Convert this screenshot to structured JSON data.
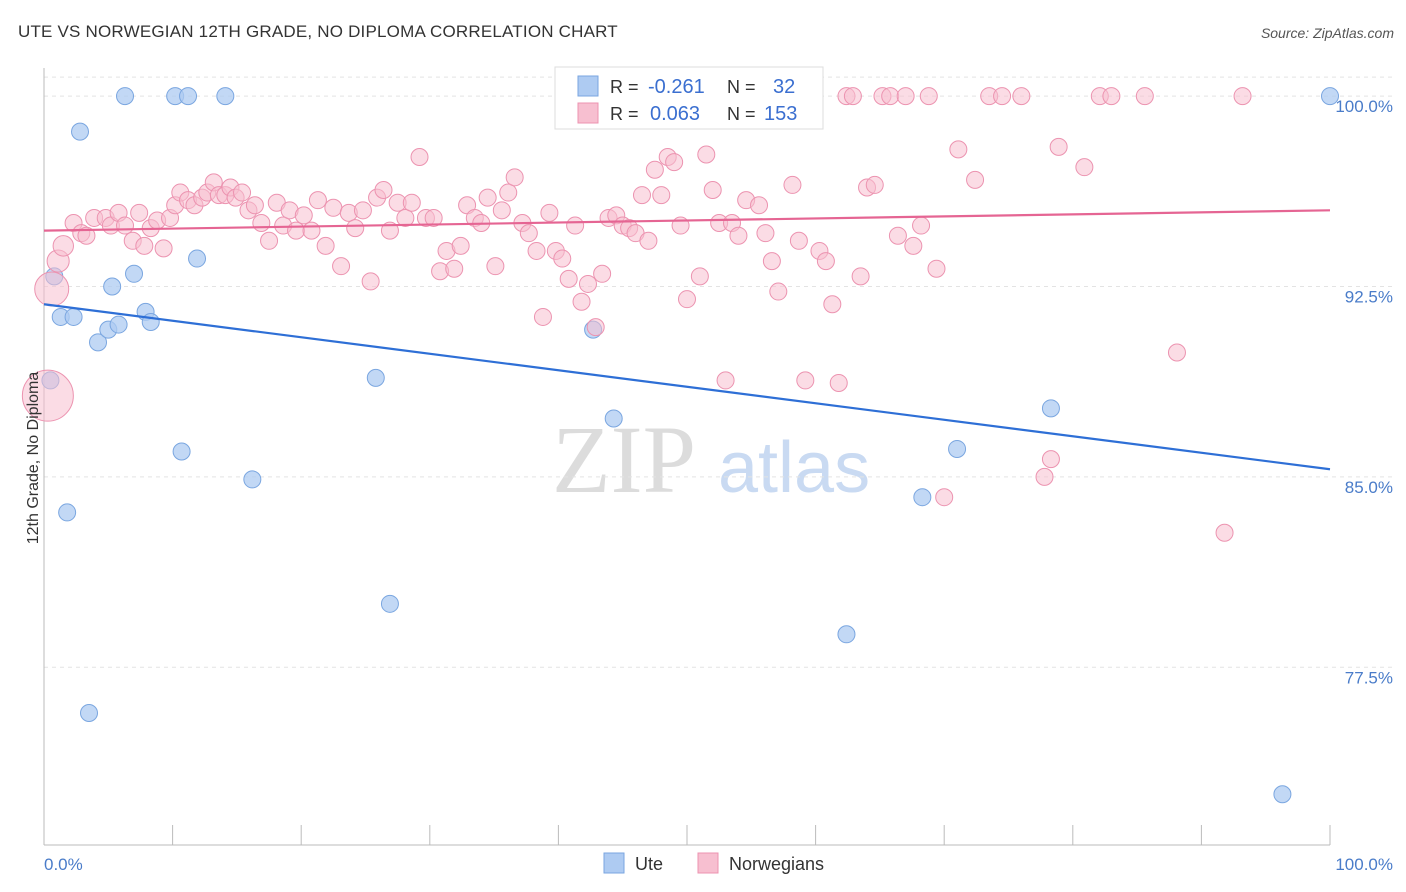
{
  "title": "UTE VS NORWEGIAN 12TH GRADE, NO DIPLOMA CORRELATION CHART",
  "source": "Source: ZipAtlas.com",
  "watermark": {
    "zip": "ZIP",
    "atlas": "atlas"
  },
  "colors": {
    "ute_fill": "#aecbf2",
    "ute_stroke": "#7aa6e0",
    "ute_line": "#2e6fd6",
    "nor_fill": "#f7bfd0",
    "nor_stroke": "#ec93b0",
    "nor_line": "#e56593",
    "tick_label": "#4a7cc9",
    "grid": "#e3e3e3"
  },
  "legend": {
    "ute": {
      "r_label": "R = ",
      "r_value": "-0.261",
      "n_label": "N = ",
      "n_value": "32"
    },
    "nor": {
      "r_label": "R = ",
      "r_value": "0.063",
      "n_label": "N = ",
      "n_value": "153"
    }
  },
  "chart_data": {
    "type": "scatter",
    "title": "UTE VS NORWEGIAN 12TH GRADE, NO DIPLOMA CORRELATION CHART",
    "xlabel": "",
    "ylabel": "12th Grade, No Diploma",
    "xlim": [
      0,
      100
    ],
    "ylim": [
      70.5,
      101.5
    ],
    "x_ticks": [
      "0.0%",
      "100.0%"
    ],
    "y_ticks": [
      {
        "value": 100.0,
        "label": "100.0%"
      },
      {
        "value": 92.5,
        "label": "92.5%"
      },
      {
        "value": 85.0,
        "label": "85.0%"
      },
      {
        "value": 77.5,
        "label": "77.5%"
      }
    ],
    "grid": true,
    "legend_position": "top-center",
    "series": [
      {
        "name": "Ute",
        "trend": {
          "x": [
            0,
            100
          ],
          "y": [
            91.8,
            85.3
          ]
        },
        "points": [
          [
            0.5,
            88.8,
            1
          ],
          [
            0.8,
            92.9,
            1
          ],
          [
            1.3,
            91.3,
            1
          ],
          [
            1.8,
            83.6,
            1
          ],
          [
            2.3,
            91.3,
            1
          ],
          [
            2.8,
            98.6,
            1
          ],
          [
            3.5,
            75.7,
            1
          ],
          [
            4.2,
            90.3,
            1
          ],
          [
            5.0,
            90.8,
            1
          ],
          [
            5.3,
            92.5,
            1
          ],
          [
            5.8,
            91.0,
            1
          ],
          [
            6.3,
            100.0,
            1
          ],
          [
            7.0,
            93.0,
            1
          ],
          [
            7.9,
            91.5,
            1
          ],
          [
            8.3,
            91.1,
            1
          ],
          [
            10.2,
            100.0,
            1
          ],
          [
            10.7,
            86.0,
            1
          ],
          [
            11.2,
            100.0,
            1
          ],
          [
            11.9,
            93.6,
            1
          ],
          [
            14.1,
            100.0,
            1
          ],
          [
            16.2,
            84.9,
            1
          ],
          [
            25.8,
            88.9,
            1
          ],
          [
            26.9,
            80.0,
            1
          ],
          [
            42.7,
            90.8,
            1
          ],
          [
            44.3,
            87.3,
            1
          ],
          [
            47.0,
            100.0,
            1
          ],
          [
            62.4,
            78.8,
            1
          ],
          [
            68.3,
            84.2,
            1
          ],
          [
            71.0,
            86.1,
            1
          ],
          [
            78.3,
            87.7,
            1
          ],
          [
            96.3,
            72.5,
            1
          ],
          [
            100.0,
            100.0,
            1
          ]
        ]
      },
      {
        "name": "Norwegians",
        "trend": {
          "x": [
            0,
            100
          ],
          "y": [
            94.7,
            95.5
          ]
        },
        "points": [
          [
            0.3,
            88.2,
            3
          ],
          [
            0.6,
            92.4,
            2
          ],
          [
            1.1,
            93.5,
            1.3
          ],
          [
            1.5,
            94.1,
            1.2
          ],
          [
            2.3,
            95.0,
            1
          ],
          [
            2.9,
            94.6,
            1
          ],
          [
            3.3,
            94.5,
            1
          ],
          [
            3.9,
            95.2,
            1
          ],
          [
            4.8,
            95.2,
            1
          ],
          [
            5.2,
            94.9,
            1
          ],
          [
            5.8,
            95.4,
            1
          ],
          [
            6.3,
            94.9,
            1
          ],
          [
            6.9,
            94.3,
            1
          ],
          [
            7.4,
            95.4,
            1
          ],
          [
            7.8,
            94.1,
            1
          ],
          [
            8.3,
            94.8,
            1
          ],
          [
            8.8,
            95.1,
            1
          ],
          [
            9.3,
            94.0,
            1
          ],
          [
            9.8,
            95.2,
            1
          ],
          [
            10.2,
            95.7,
            1
          ],
          [
            10.6,
            96.2,
            1
          ],
          [
            11.2,
            95.9,
            1
          ],
          [
            11.7,
            95.7,
            1
          ],
          [
            12.3,
            96.0,
            1
          ],
          [
            12.7,
            96.2,
            1
          ],
          [
            13.2,
            96.6,
            1
          ],
          [
            13.6,
            96.1,
            1
          ],
          [
            14.1,
            96.1,
            1
          ],
          [
            14.5,
            96.4,
            1
          ],
          [
            14.9,
            96.0,
            1
          ],
          [
            15.4,
            96.2,
            1
          ],
          [
            15.9,
            95.5,
            1
          ],
          [
            16.4,
            95.7,
            1
          ],
          [
            16.9,
            95.0,
            1
          ],
          [
            17.5,
            94.3,
            1
          ],
          [
            18.1,
            95.8,
            1
          ],
          [
            18.6,
            94.9,
            1
          ],
          [
            19.1,
            95.5,
            1
          ],
          [
            19.6,
            94.7,
            1
          ],
          [
            20.2,
            95.3,
            1
          ],
          [
            20.8,
            94.7,
            1
          ],
          [
            21.3,
            95.9,
            1
          ],
          [
            21.9,
            94.1,
            1
          ],
          [
            22.5,
            95.6,
            1
          ],
          [
            23.1,
            93.3,
            1
          ],
          [
            23.7,
            95.4,
            1
          ],
          [
            24.2,
            94.8,
            1
          ],
          [
            24.8,
            95.5,
            1
          ],
          [
            25.4,
            92.7,
            1
          ],
          [
            25.9,
            96.0,
            1
          ],
          [
            26.4,
            96.3,
            1
          ],
          [
            26.9,
            94.7,
            1
          ],
          [
            27.5,
            95.8,
            1
          ],
          [
            28.1,
            95.2,
            1
          ],
          [
            28.6,
            95.8,
            1
          ],
          [
            29.2,
            97.6,
            1
          ],
          [
            29.7,
            95.2,
            1
          ],
          [
            30.3,
            95.2,
            1
          ],
          [
            30.8,
            93.1,
            1
          ],
          [
            31.3,
            93.9,
            1
          ],
          [
            31.9,
            93.2,
            1
          ],
          [
            32.4,
            94.1,
            1
          ],
          [
            32.9,
            95.7,
            1
          ],
          [
            33.5,
            95.2,
            1
          ],
          [
            34.0,
            95.0,
            1
          ],
          [
            34.5,
            96.0,
            1
          ],
          [
            35.1,
            93.3,
            1
          ],
          [
            35.6,
            95.5,
            1
          ],
          [
            36.1,
            96.2,
            1
          ],
          [
            36.6,
            96.8,
            1
          ],
          [
            37.2,
            95.0,
            1
          ],
          [
            37.7,
            94.6,
            1
          ],
          [
            38.3,
            93.9,
            1
          ],
          [
            38.8,
            91.3,
            1
          ],
          [
            39.3,
            95.4,
            1
          ],
          [
            39.8,
            93.9,
            1
          ],
          [
            40.3,
            93.6,
            1
          ],
          [
            40.8,
            92.8,
            1
          ],
          [
            41.3,
            94.9,
            1
          ],
          [
            41.8,
            91.9,
            1
          ],
          [
            42.3,
            92.6,
            1
          ],
          [
            42.9,
            90.9,
            1
          ],
          [
            43.4,
            93.0,
            1
          ],
          [
            43.9,
            95.2,
            1
          ],
          [
            44.5,
            95.3,
            1
          ],
          [
            45.0,
            94.9,
            1
          ],
          [
            45.5,
            94.8,
            1
          ],
          [
            46.0,
            94.6,
            1
          ],
          [
            46.5,
            96.1,
            1
          ],
          [
            47.0,
            94.3,
            1
          ],
          [
            47.5,
            97.1,
            1
          ],
          [
            48.0,
            96.1,
            1
          ],
          [
            48.5,
            97.6,
            1
          ],
          [
            49.0,
            97.4,
            1
          ],
          [
            49.5,
            94.9,
            1
          ],
          [
            50.0,
            92.0,
            1
          ],
          [
            50.5,
            100.0,
            1
          ],
          [
            51.0,
            92.9,
            1
          ],
          [
            51.5,
            97.7,
            1
          ],
          [
            52.0,
            96.3,
            1
          ],
          [
            52.5,
            95.0,
            1
          ],
          [
            53.0,
            88.8,
            1
          ],
          [
            53.5,
            95.0,
            1
          ],
          [
            54.0,
            94.5,
            1
          ],
          [
            54.6,
            95.9,
            1
          ],
          [
            55.1,
            100.0,
            1
          ],
          [
            55.6,
            95.7,
            1
          ],
          [
            56.1,
            94.6,
            1
          ],
          [
            56.6,
            93.5,
            1
          ],
          [
            57.1,
            92.3,
            1
          ],
          [
            57.6,
            100.0,
            1
          ],
          [
            58.2,
            96.5,
            1
          ],
          [
            58.7,
            94.3,
            1
          ],
          [
            59.2,
            88.8,
            1
          ],
          [
            59.7,
            100.0,
            1
          ],
          [
            60.3,
            93.9,
            1
          ],
          [
            60.8,
            93.5,
            1
          ],
          [
            61.3,
            91.8,
            1
          ],
          [
            61.8,
            88.7,
            1
          ],
          [
            62.4,
            100.0,
            1
          ],
          [
            62.9,
            100.0,
            1
          ],
          [
            63.5,
            92.9,
            1
          ],
          [
            64.0,
            96.4,
            1
          ],
          [
            64.6,
            96.5,
            1
          ],
          [
            65.2,
            100.0,
            1
          ],
          [
            65.8,
            100.0,
            1
          ],
          [
            66.4,
            94.5,
            1
          ],
          [
            67.0,
            100.0,
            1
          ],
          [
            67.6,
            94.1,
            1
          ],
          [
            68.2,
            94.9,
            1
          ],
          [
            68.8,
            100.0,
            1
          ],
          [
            69.4,
            93.2,
            1
          ],
          [
            70.0,
            84.2,
            1
          ],
          [
            71.1,
            97.9,
            1
          ],
          [
            72.4,
            96.7,
            1
          ],
          [
            73.5,
            100.0,
            1
          ],
          [
            74.5,
            100.0,
            1
          ],
          [
            76.0,
            100.0,
            1
          ],
          [
            77.8,
            85.0,
            1
          ],
          [
            78.3,
            85.7,
            1
          ],
          [
            78.9,
            98.0,
            1
          ],
          [
            80.9,
            97.2,
            1
          ],
          [
            82.1,
            100.0,
            1
          ],
          [
            83.0,
            100.0,
            1
          ],
          [
            85.6,
            100.0,
            1
          ],
          [
            88.1,
            89.9,
            1
          ],
          [
            91.8,
            82.8,
            1
          ],
          [
            93.2,
            100.0,
            1
          ]
        ]
      }
    ]
  }
}
